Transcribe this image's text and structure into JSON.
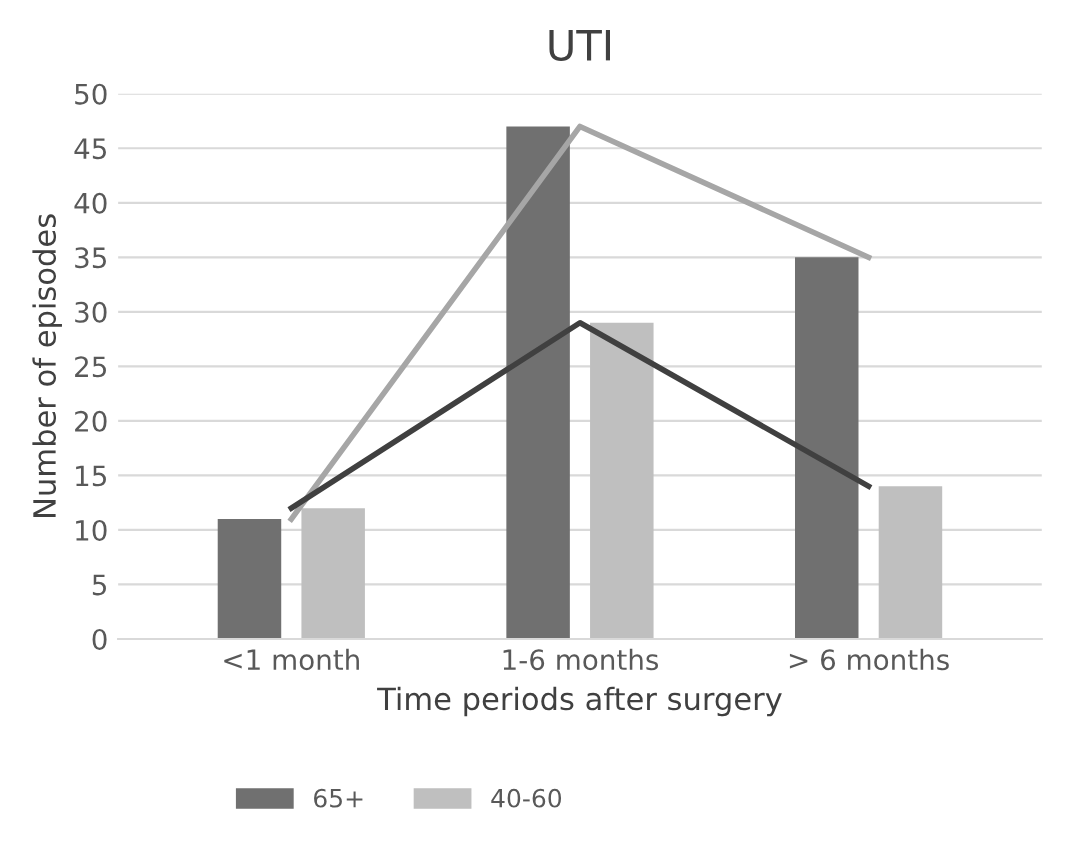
{
  "chart_data": {
    "type": "bar",
    "title": "UTI",
    "xlabel": "Time periods after surgery",
    "ylabel": "Number of episodes",
    "categories": [
      "<1 month",
      "1-6 months",
      "> 6 months"
    ],
    "series": [
      {
        "name": "65+",
        "color": "#707070",
        "values": [
          11,
          47,
          35
        ]
      },
      {
        "name": "40-60",
        "color": "#bfbfbf",
        "values": [
          12,
          29,
          14
        ]
      },
      {
        "type": "line",
        "color": "#a6a6a6",
        "values": [
          11,
          47,
          35
        ]
      },
      {
        "type": "line",
        "color": "#404040",
        "values": [
          12,
          29,
          14
        ]
      }
    ],
    "ylim": [
      0,
      50
    ],
    "yticks": [
      0,
      5,
      10,
      15,
      20,
      25,
      30,
      35,
      40,
      45,
      50
    ],
    "grid": "y",
    "legend": "bottom"
  }
}
